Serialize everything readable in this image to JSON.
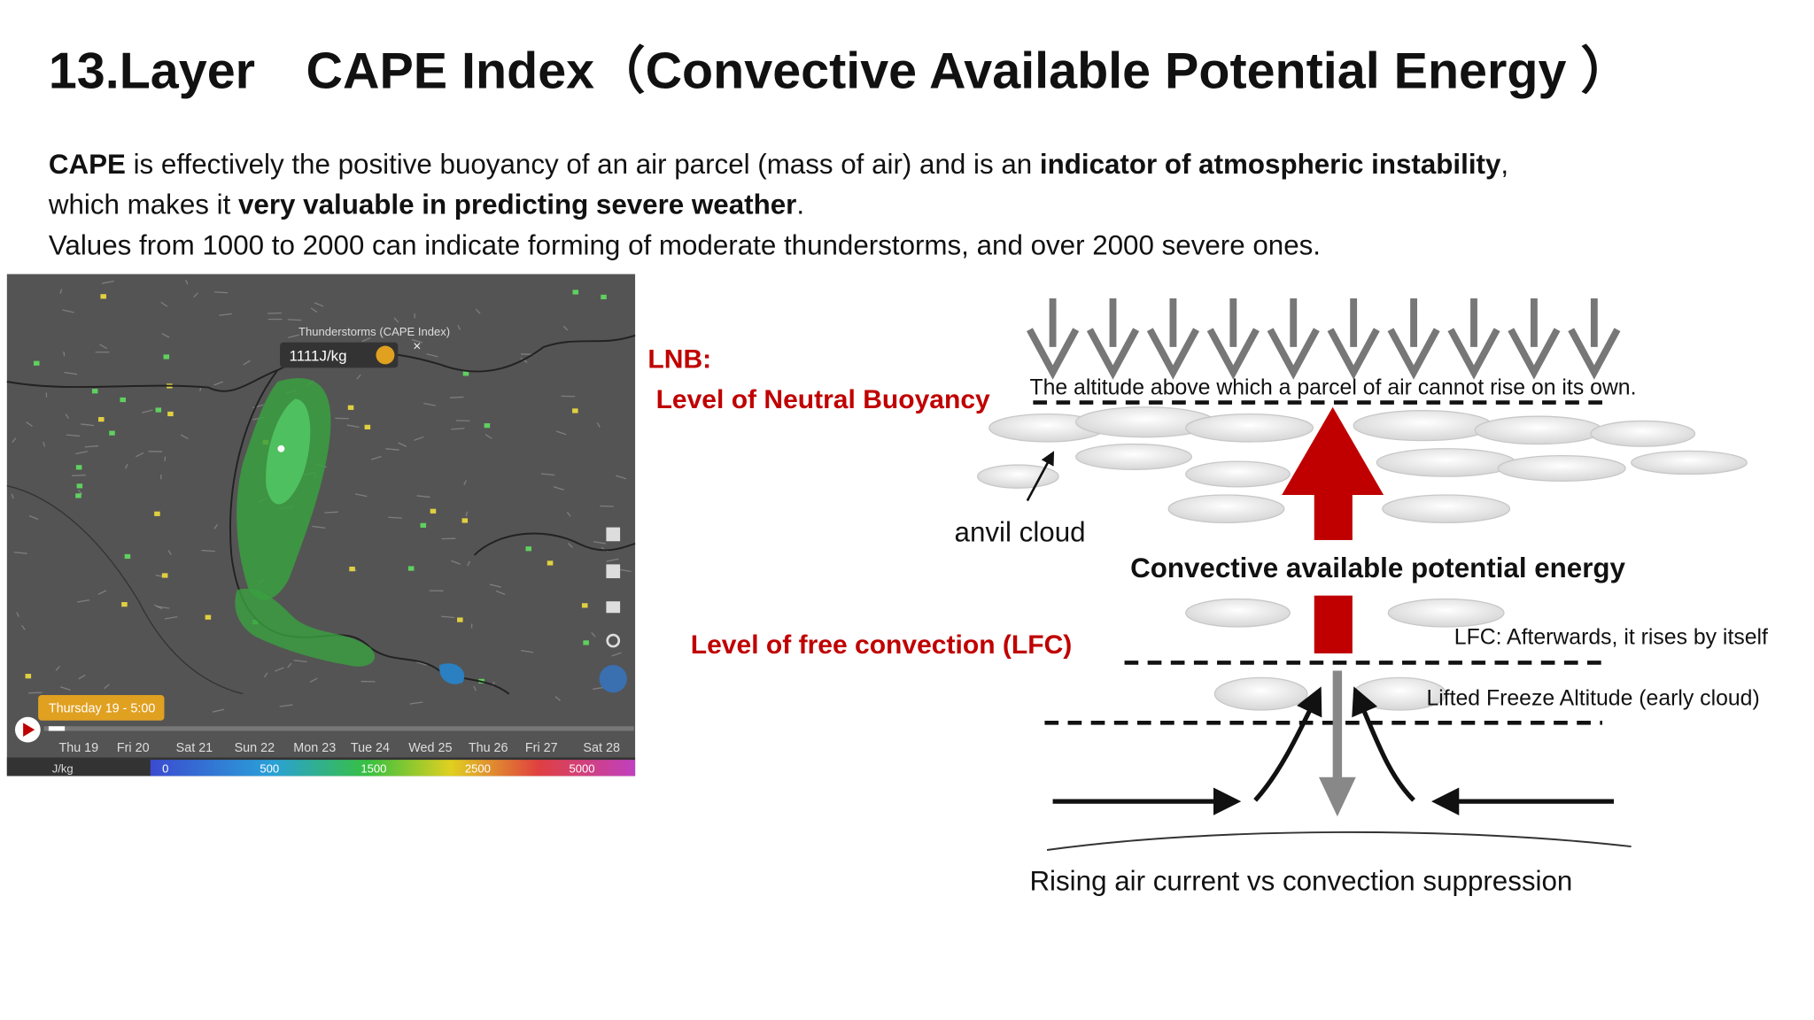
{
  "title": "13.Layer　CAPE Index（Convective Available Potential Energy ）",
  "intro": [
    [
      {
        "text": "CAPE",
        "bold": true
      },
      {
        "text": " is effectively the positive buoyancy of an air parcel (mass of air) and is an ",
        "bold": false
      },
      {
        "text": "indicator of atmospheric instability",
        "bold": true
      },
      {
        "text": ",",
        "bold": false
      }
    ],
    [
      {
        "text": "which makes it ",
        "bold": false
      },
      {
        "text": "very valuable in predicting severe weather",
        "bold": true
      },
      {
        "text": ".",
        "bold": false
      }
    ],
    [
      {
        "text": "Values from 1000 to 2000 can indicate forming of moderate thunderstorms, and over 2000 severe ones.",
        "bold": false
      }
    ]
  ],
  "map": {
    "layer_name": "Thunderstorms (CAPE Index)",
    "readout": "1111J/kg",
    "time": "Thursday 19 - 5:00",
    "days": [
      "Thu 19",
      "Fri 20",
      "Sat 21",
      "Sun 22",
      "Mon 23",
      "Tue 24",
      "Wed 25",
      "Thu 26",
      "Fri 27",
      "Sat 28"
    ],
    "legend_unit": "J/kg",
    "legend_values": [
      "0",
      "500",
      "1500",
      "2500",
      "5000"
    ]
  },
  "diagram": {
    "lnb_label": "LNB:",
    "lnb_name": "Level of Neutral Buoyancy",
    "lnb_desc": "The altitude above which a parcel of air cannot rise on its own.",
    "anvil": "anvil cloud",
    "cape_label": "Convective available potential energy",
    "lfc_name": "Level of free convection (LFC)",
    "lfc_desc": "LFC: Afterwards, it rises by itself",
    "lifted": "Lifted Freeze Altitude (early cloud)",
    "caption": "Rising air current  vs convection suppression"
  }
}
